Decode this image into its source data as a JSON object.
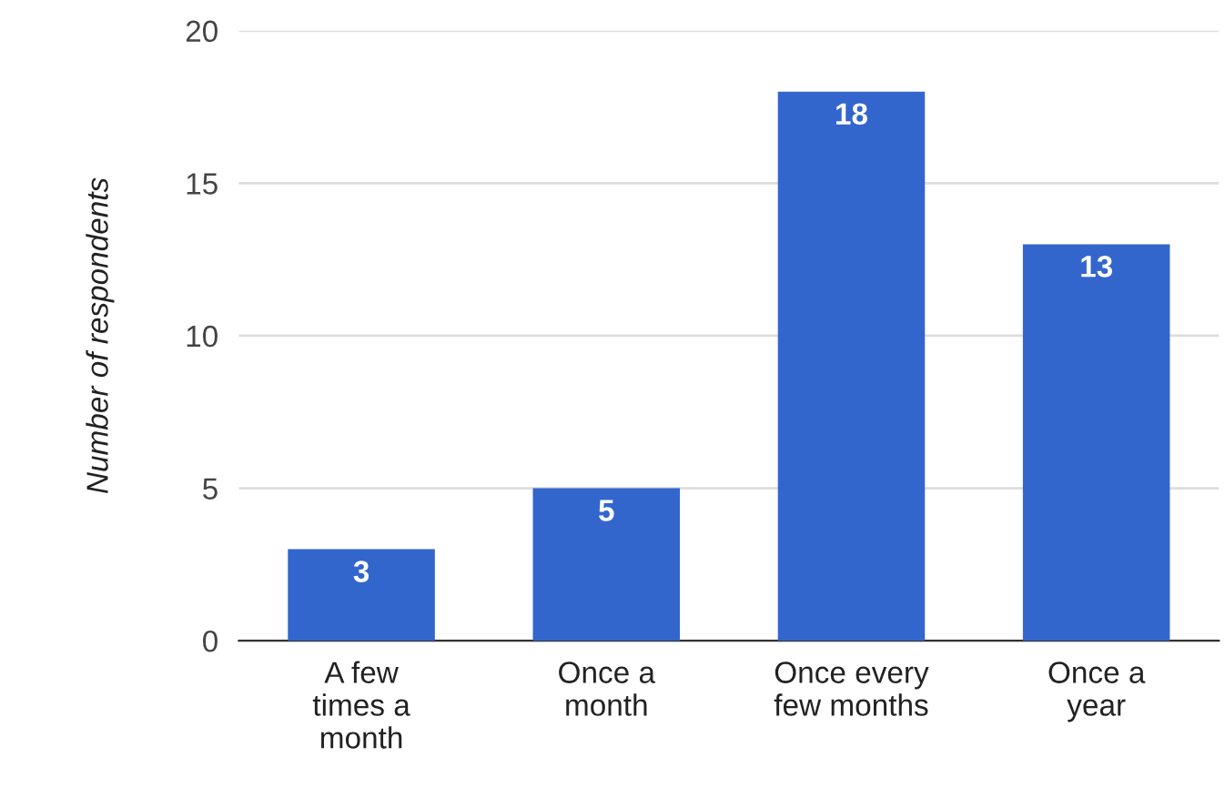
{
  "chart_data": {
    "type": "bar",
    "ylabel": "Number of respondents",
    "categories": [
      "A few\ntimes a\nmonth",
      "Once a\nmonth",
      "Once every\nfew months",
      "Once a\nyear"
    ],
    "values": [
      3,
      5,
      18,
      13
    ],
    "color": "#3366cc",
    "ylim": [
      0,
      20
    ],
    "yticks": [
      0,
      5,
      10,
      15,
      20
    ],
    "grid": "y",
    "data_labels": true
  }
}
